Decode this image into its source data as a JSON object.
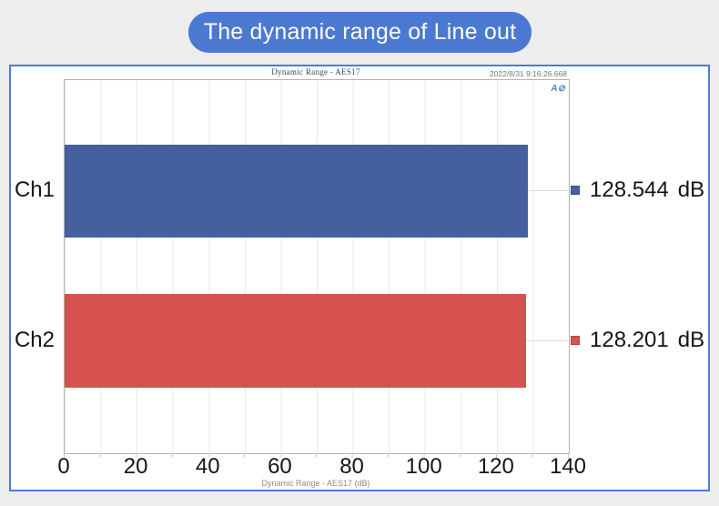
{
  "banner": {
    "label": "The dynamic range of Line out"
  },
  "window": {
    "title": "Dynamic Range - AES17",
    "timestamp": "2022/8/31 9:16:26.668",
    "logo_icon": "A⊘"
  },
  "colors": {
    "banner_blue": "#4b79d2",
    "window_border_blue": "#4a7dd4",
    "bar_blue": "#465F9E",
    "bar_red": "#D5524E"
  },
  "chart_data": {
    "type": "bar",
    "orientation": "horizontal",
    "title": "Dynamic Range - AES17",
    "xlabel": "Dynamic Range - AES17 (dB)",
    "categories": [
      "Ch1",
      "Ch2"
    ],
    "values": [
      128.544,
      128.201
    ],
    "value_labels": [
      "128.544",
      "128.201"
    ],
    "unit": "dB",
    "series_colors": [
      "#465F9E",
      "#D5524E"
    ],
    "xlim": [
      0,
      140
    ],
    "x_ticks": [
      0,
      20,
      40,
      60,
      80,
      100,
      120,
      140
    ],
    "minor_tick_step": 10,
    "grid": true,
    "legend_position": "right-of-plot"
  }
}
